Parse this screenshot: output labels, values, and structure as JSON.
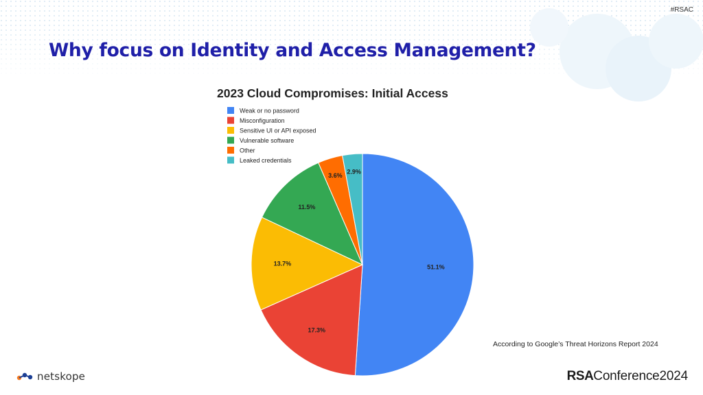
{
  "slide": {
    "hashtag": "#RSAC",
    "title": "Why focus on Identity and Access Management?",
    "source_note": "According to Google’s Threat Horizons Report 2024",
    "logo_left_text": "netskope",
    "logo_right_rsa": "RSA",
    "logo_right_conf": "Conference",
    "logo_right_year": "2024"
  },
  "chart_data": {
    "type": "pie",
    "title": "2023 Cloud Compromises: Initial Access",
    "legend_position": "top-left",
    "start_angle_deg": 0,
    "direction": "clockwise",
    "slices": [
      {
        "label": "Weak or no password",
        "value": 51.1,
        "display": "51.1%",
        "color": "#4285f4"
      },
      {
        "label": "Misconfiguration",
        "value": 17.3,
        "display": "17.3%",
        "color": "#ea4335"
      },
      {
        "label": "Sensitive UI or API exposed",
        "value": 13.7,
        "display": "13.7%",
        "color": "#fbbc04"
      },
      {
        "label": "Vulnerable software",
        "value": 11.5,
        "display": "11.5%",
        "color": "#34a853"
      },
      {
        "label": "Other",
        "value": 3.6,
        "display": "3.6%",
        "color": "#ff6d01"
      },
      {
        "label": "Leaked credentials",
        "value": 2.9,
        "display": "2.9%",
        "color": "#46bdc6"
      }
    ]
  }
}
